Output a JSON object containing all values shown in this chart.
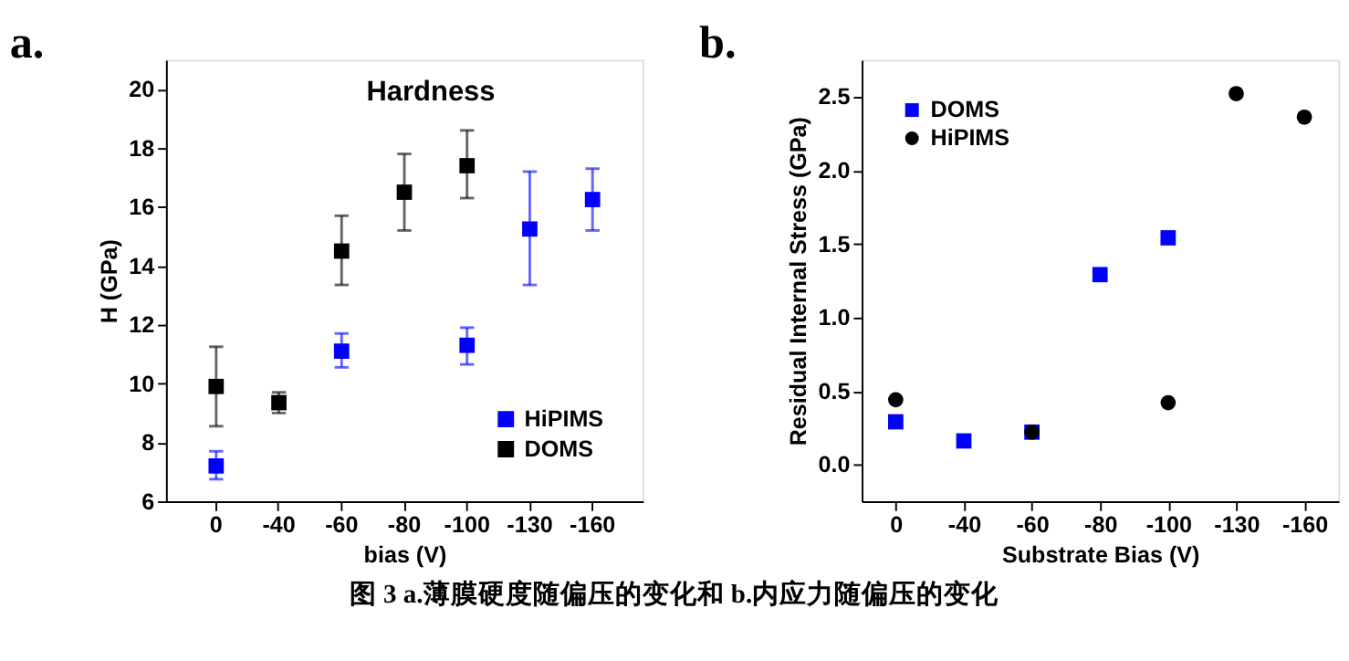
{
  "chart_data": [
    {
      "type": "scatter",
      "title": "a.",
      "annotations": [
        "Hardness"
      ],
      "xlabel": "bias (V)",
      "ylabel": "H (GPa)",
      "categories": [
        "0",
        "-40",
        "-60",
        "-80",
        "-100",
        "-130",
        "-160"
      ],
      "ylim": [
        6,
        21
      ],
      "yticks": [
        6,
        8,
        10,
        12,
        14,
        16,
        18,
        20
      ],
      "grid": false,
      "legend": "bottom right",
      "series": [
        {
          "name": "HiPIMS",
          "color": "#0000ff",
          "marker": "square",
          "values": [
            7.2,
            null,
            11.1,
            null,
            11.3,
            15.25,
            16.25
          ],
          "errors": [
            [
              6.75,
              7.7
            ],
            null,
            [
              10.55,
              11.7
            ],
            null,
            [
              10.65,
              11.9
            ],
            [
              13.35,
              17.2
            ],
            [
              15.2,
              17.3
            ]
          ]
        },
        {
          "name": "DOMS",
          "color": "#000000",
          "marker": "square",
          "values": [
            9.9,
            9.35,
            14.5,
            16.5,
            17.4,
            null,
            null
          ],
          "errors": [
            [
              8.55,
              11.25
            ],
            [
              9.0,
              9.7
            ],
            [
              13.35,
              15.7
            ],
            [
              15.2,
              17.8
            ],
            [
              16.3,
              18.6
            ],
            null,
            null
          ]
        }
      ]
    },
    {
      "type": "scatter",
      "title": "b.",
      "annotations": [
        "图 3 a.薄膜硬度随偏压的变化和 b.内应力随偏压的变化"
      ],
      "xlabel": "Substrate Bias (V)",
      "ylabel": "Residual Internal Stress (GPa)",
      "categories": [
        "0",
        "-40",
        "-60",
        "-80",
        "-100",
        "-130",
        "-160"
      ],
      "ylim": [
        -0.25,
        2.75
      ],
      "yticks": [
        {
          "value": 0,
          "label": "0.0"
        },
        0.5,
        {
          "value": 1,
          "label": "1.0"
        },
        1.5,
        {
          "value": 2,
          "label": "2.0"
        },
        2.5
      ],
      "grid": false,
      "legend": "top left",
      "series": [
        {
          "name": "DOMS",
          "color": "#0000ff",
          "marker": "square",
          "values": [
            0.29,
            0.16,
            0.22,
            1.29,
            1.54,
            null,
            null
          ]
        },
        {
          "name": "HiPIMS",
          "color": "#000000",
          "marker": "circle",
          "values": [
            0.44,
            null,
            0.22,
            null,
            0.42,
            2.52,
            2.36
          ]
        }
      ]
    }
  ]
}
